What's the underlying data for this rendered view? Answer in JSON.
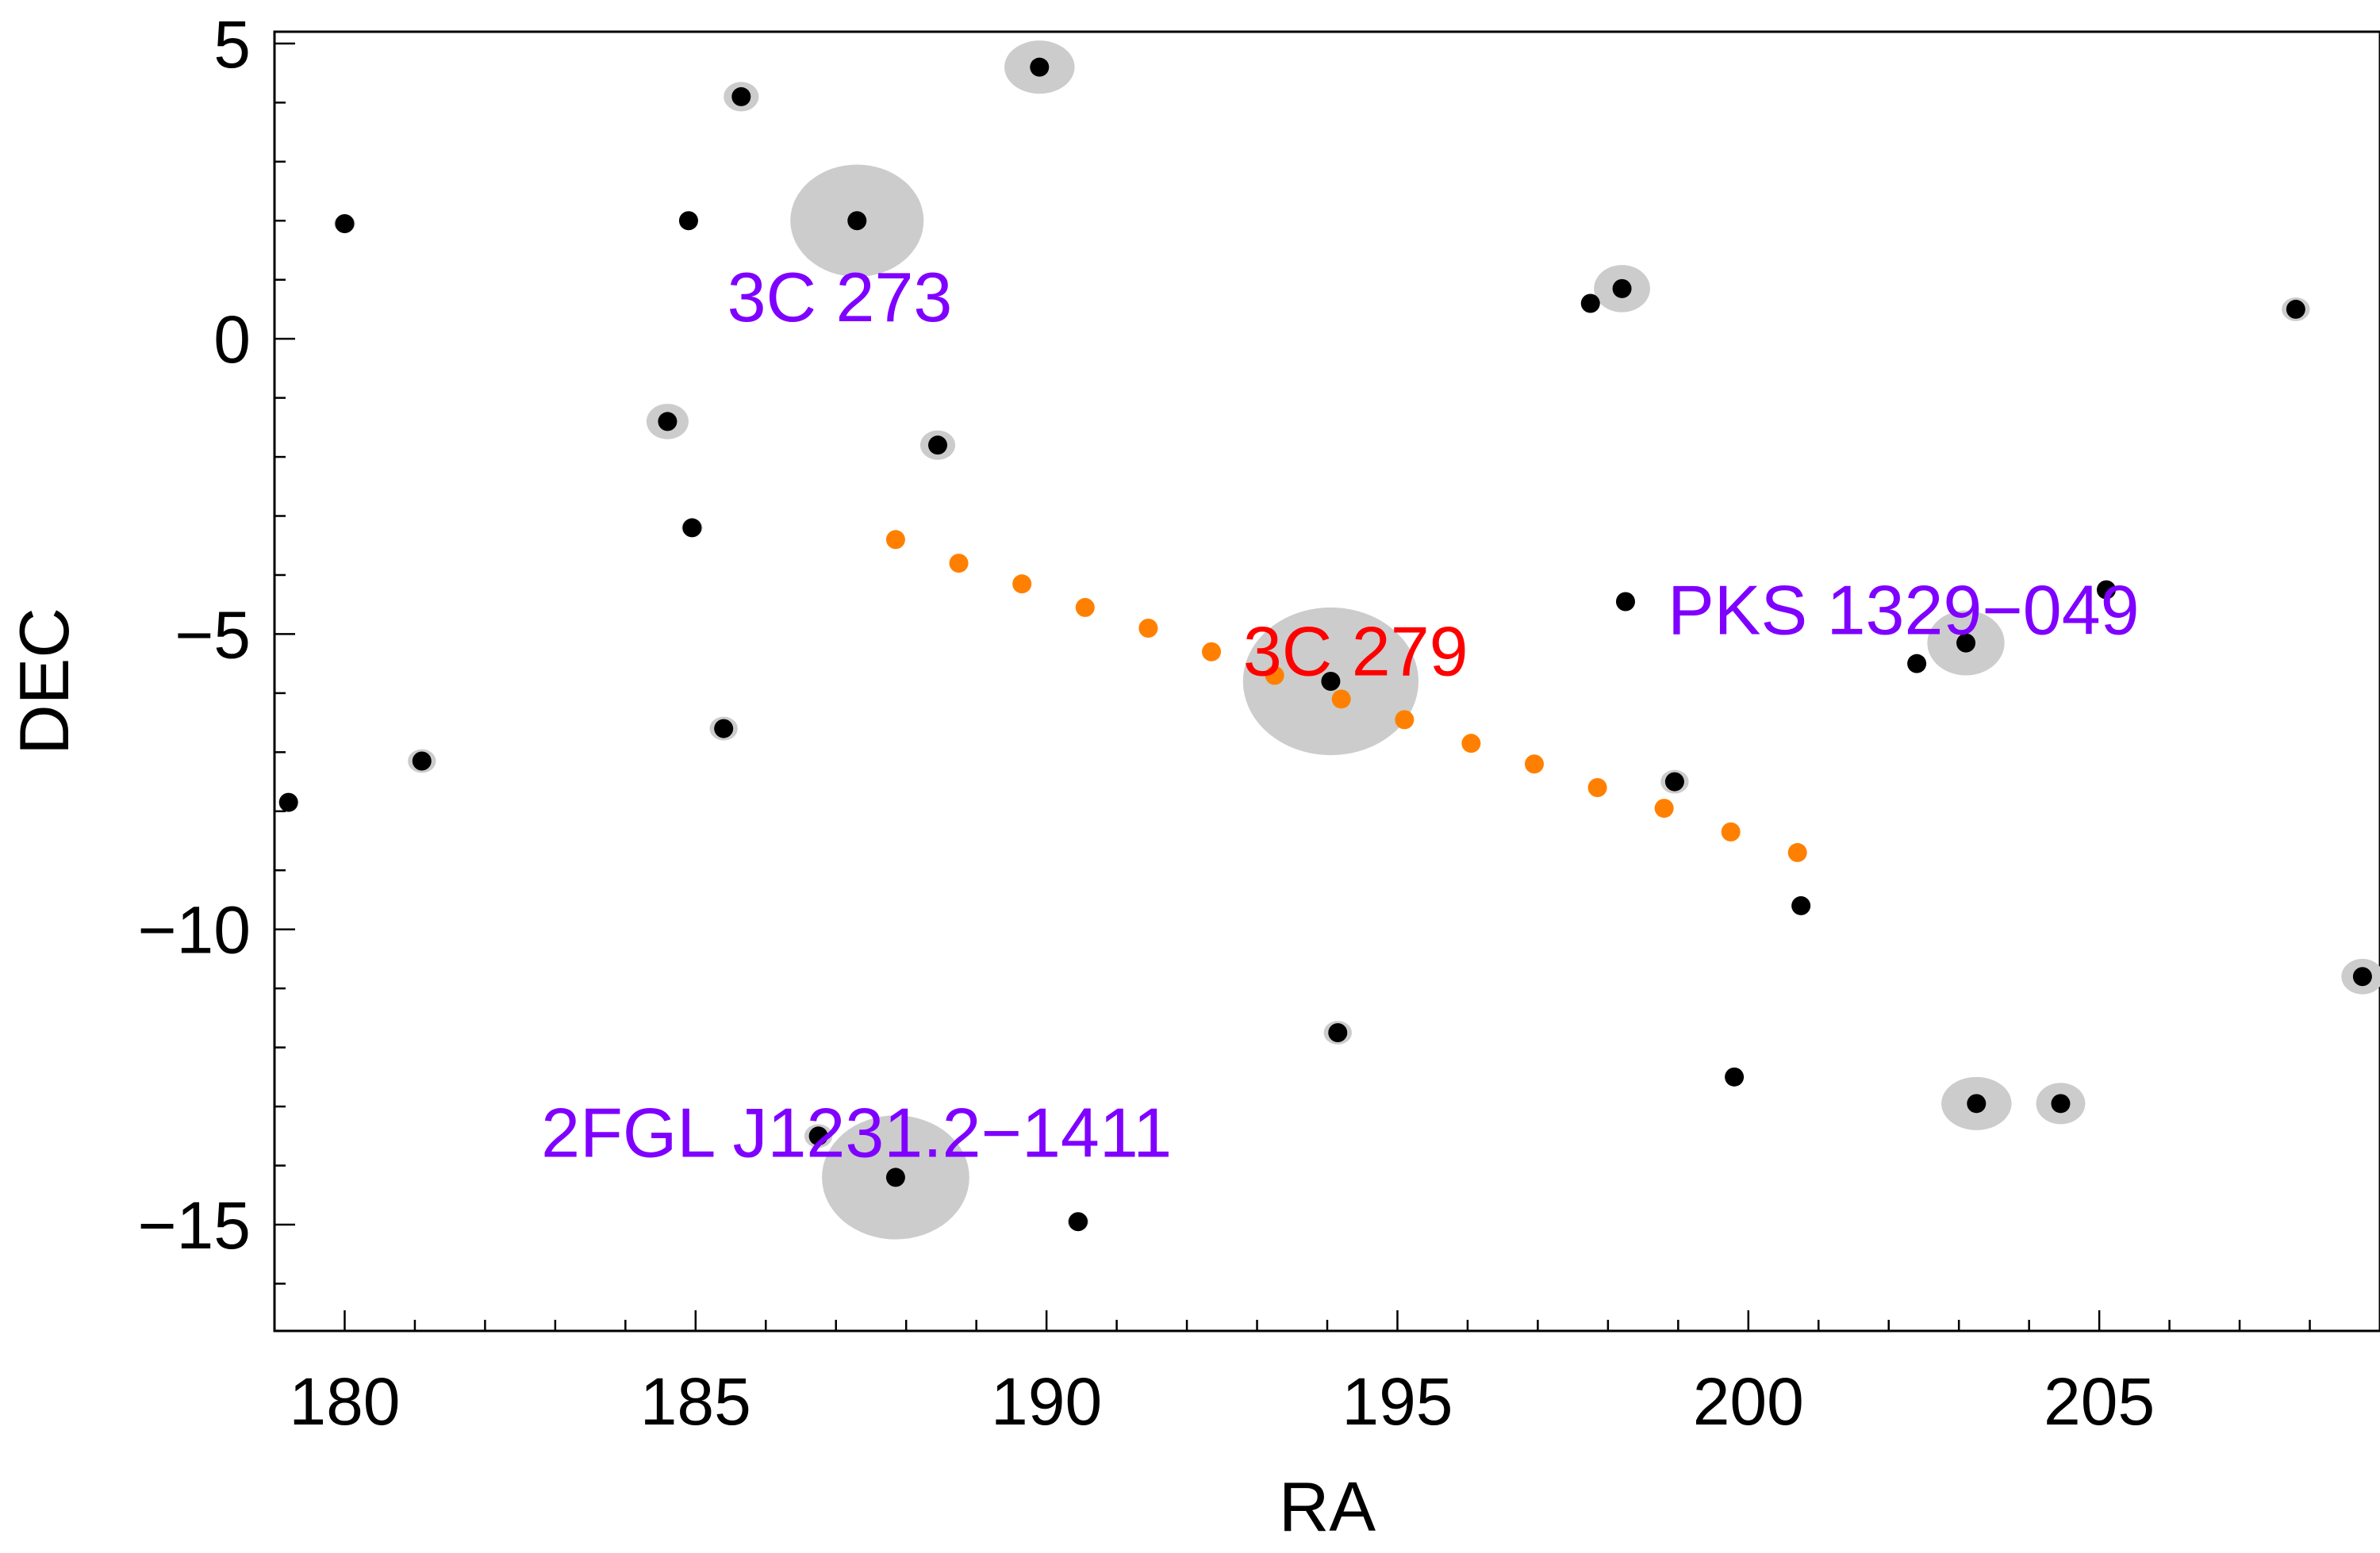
{
  "chart_data": {
    "type": "scatter",
    "title": "",
    "xlabel": "RA",
    "ylabel": "DEC",
    "xlim": [
      179,
      209
    ],
    "ylim": [
      -16.8,
      5.2
    ],
    "xticks": [
      180,
      185,
      190,
      195,
      200,
      205
    ],
    "yticks": [
      5,
      0,
      -5,
      -10,
      -15
    ],
    "xtick_labels": [
      "180",
      "185",
      "190",
      "195",
      "200",
      "205"
    ],
    "ytick_labels": [
      "5",
      "0",
      "−5",
      "−10",
      "−15"
    ],
    "colors": {
      "source_dot": "#000000",
      "error_region": "#cccccc",
      "track": "#ff8000",
      "source_label": "#7f00ff",
      "target_label": "#ff0000"
    },
    "sources": [
      {
        "ra": 180.0,
        "dec": 1.95,
        "err_ra": 0.15,
        "err_dec": 0.15
      },
      {
        "ra": 179.2,
        "dec": -7.85,
        "err_ra": 0.0,
        "err_dec": 0.0
      },
      {
        "ra": 181.1,
        "dec": -7.15,
        "err_ra": 0.2,
        "err_dec": 0.2
      },
      {
        "ra": 184.6,
        "dec": -1.4,
        "err_ra": 0.3,
        "err_dec": 0.3
      },
      {
        "ra": 184.9,
        "dec": 2.0,
        "err_ra": 0.0,
        "err_dec": 0.0
      },
      {
        "ra": 184.95,
        "dec": -3.2,
        "err_ra": 0.15,
        "err_dec": 0.15
      },
      {
        "ra": 185.4,
        "dec": -6.6,
        "err_ra": 0.2,
        "err_dec": 0.2
      },
      {
        "ra": 185.65,
        "dec": 4.1,
        "err_ra": 0.25,
        "err_dec": 0.25
      },
      {
        "ra": 187.3,
        "dec": 2.0,
        "err_ra": 0.95,
        "err_dec": 0.95
      },
      {
        "ra": 188.45,
        "dec": -1.8,
        "err_ra": 0.25,
        "err_dec": 0.25
      },
      {
        "ra": 189.9,
        "dec": 4.6,
        "err_ra": 0.5,
        "err_dec": 0.45
      },
      {
        "ra": 186.75,
        "dec": -13.5,
        "err_ra": 0.2,
        "err_dec": 0.2
      },
      {
        "ra": 187.85,
        "dec": -14.2,
        "err_ra": 1.05,
        "err_dec": 1.05
      },
      {
        "ra": 190.45,
        "dec": -14.95,
        "err_ra": 0.15,
        "err_dec": 0.15
      },
      {
        "ra": 194.05,
        "dec": -5.8,
        "err_ra": 1.25,
        "err_dec": 1.25
      },
      {
        "ra": 194.15,
        "dec": -11.75,
        "err_ra": 0.2,
        "err_dec": 0.2
      },
      {
        "ra": 197.75,
        "dec": 0.6,
        "err_ra": 0.0,
        "err_dec": 0.0
      },
      {
        "ra": 198.2,
        "dec": 0.85,
        "err_ra": 0.4,
        "err_dec": 0.4
      },
      {
        "ra": 198.25,
        "dec": -4.45,
        "err_ra": 0.0,
        "err_dec": 0.0
      },
      {
        "ra": 198.95,
        "dec": -7.5,
        "err_ra": 0.2,
        "err_dec": 0.2
      },
      {
        "ra": 199.8,
        "dec": -12.5,
        "err_ra": 0.0,
        "err_dec": 0.0
      },
      {
        "ra": 200.75,
        "dec": -9.6,
        "err_ra": 0.0,
        "err_dec": 0.0
      },
      {
        "ra": 202.4,
        "dec": -5.5,
        "err_ra": 0.1,
        "err_dec": 0.1
      },
      {
        "ra": 203.1,
        "dec": -5.15,
        "err_ra": 0.55,
        "err_dec": 0.55
      },
      {
        "ra": 205.1,
        "dec": -4.25,
        "err_ra": 0.0,
        "err_dec": 0.0
      },
      {
        "ra": 203.25,
        "dec": -12.95,
        "err_ra": 0.5,
        "err_dec": 0.45
      },
      {
        "ra": 204.45,
        "dec": -12.95,
        "err_ra": 0.35,
        "err_dec": 0.35
      },
      {
        "ra": 207.8,
        "dec": 0.5,
        "err_ra": 0.2,
        "err_dec": 0.2
      },
      {
        "ra": 208.75,
        "dec": -10.8,
        "err_ra": 0.3,
        "err_dec": 0.3
      }
    ],
    "track": [
      {
        "ra": 187.85,
        "dec": -3.4
      },
      {
        "ra": 188.75,
        "dec": -3.8
      },
      {
        "ra": 189.65,
        "dec": -4.15
      },
      {
        "ra": 190.55,
        "dec": -4.55
      },
      {
        "ra": 191.45,
        "dec": -4.9
      },
      {
        "ra": 192.35,
        "dec": -5.3
      },
      {
        "ra": 193.25,
        "dec": -5.7
      },
      {
        "ra": 194.2,
        "dec": -6.1
      },
      {
        "ra": 195.1,
        "dec": -6.45
      },
      {
        "ra": 196.05,
        "dec": -6.85
      },
      {
        "ra": 196.95,
        "dec": -7.2
      },
      {
        "ra": 197.85,
        "dec": -7.6
      },
      {
        "ra": 198.8,
        "dec": -7.95
      },
      {
        "ra": 199.75,
        "dec": -8.35
      },
      {
        "ra": 200.7,
        "dec": -8.7
      }
    ],
    "labels": [
      {
        "text": "3C 273",
        "ra": 185.45,
        "dec": 0.3,
        "style": "source"
      },
      {
        "text": "3C 279",
        "ra": 192.8,
        "dec": -5.7,
        "style": "target"
      },
      {
        "text": "PKS 1329−049",
        "ra": 198.85,
        "dec": -5.0,
        "style": "source"
      },
      {
        "text": "2FGL J1231.2−1411",
        "ra": 182.8,
        "dec": -13.85,
        "style": "source"
      }
    ]
  }
}
